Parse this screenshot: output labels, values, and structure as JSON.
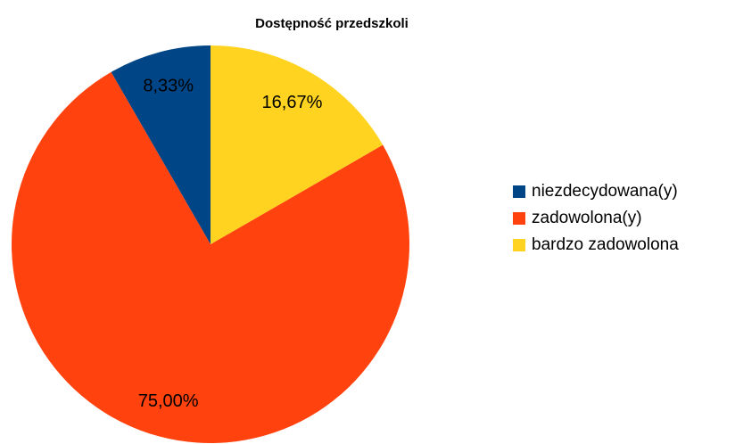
{
  "chart_data": {
    "type": "pie",
    "title": "Dostępność przedszkoli",
    "categories": [
      "niezdecydowana(y)",
      "zadowolona(y)",
      "bardzo zadowolona"
    ],
    "values": [
      8.33,
      75.0,
      16.67
    ],
    "value_labels": [
      "8,33%",
      "75,00%",
      "16,67%"
    ],
    "colors": [
      "#004586",
      "#ff420e",
      "#ffd320"
    ],
    "legend": "right"
  }
}
